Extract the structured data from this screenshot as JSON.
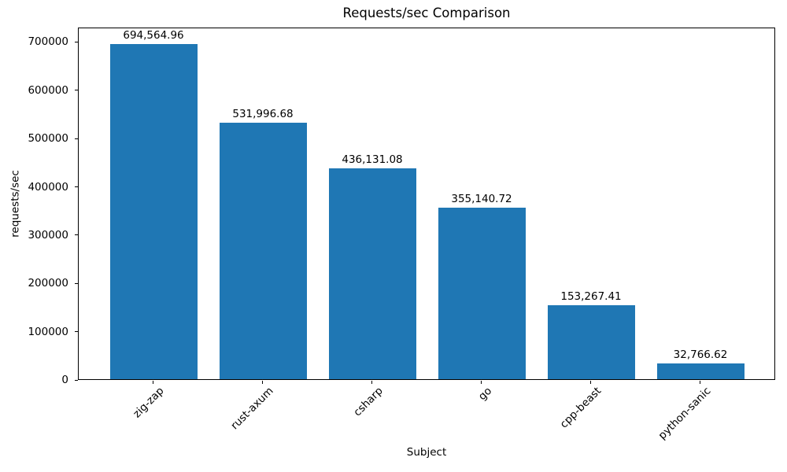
{
  "chart_data": {
    "type": "bar",
    "title": "Requests/sec Comparison",
    "xlabel": "Subject",
    "ylabel": "requests/sec",
    "categories": [
      "zig-zap",
      "rust-axum",
      "csharp",
      "go",
      "cpp-beast",
      "python-sanic"
    ],
    "values": [
      694564.96,
      531996.68,
      436131.08,
      355140.72,
      153267.41,
      32766.62
    ],
    "value_labels": [
      "694,564.96",
      "531,996.68",
      "436,131.08",
      "355,140.72",
      "153,267.41",
      "32,766.62"
    ],
    "yticks": [
      0,
      100000,
      200000,
      300000,
      400000,
      500000,
      600000,
      700000
    ],
    "ytick_labels": [
      "0",
      "100000",
      "200000",
      "300000",
      "400000",
      "500000",
      "600000",
      "700000"
    ],
    "ylim": [
      0,
      730000
    ],
    "xtick_rotation_deg": 45,
    "grid": false,
    "legend": "none",
    "bar_color": "#1f77b4",
    "text_color": "#000000",
    "background_color": "#ffffff"
  }
}
